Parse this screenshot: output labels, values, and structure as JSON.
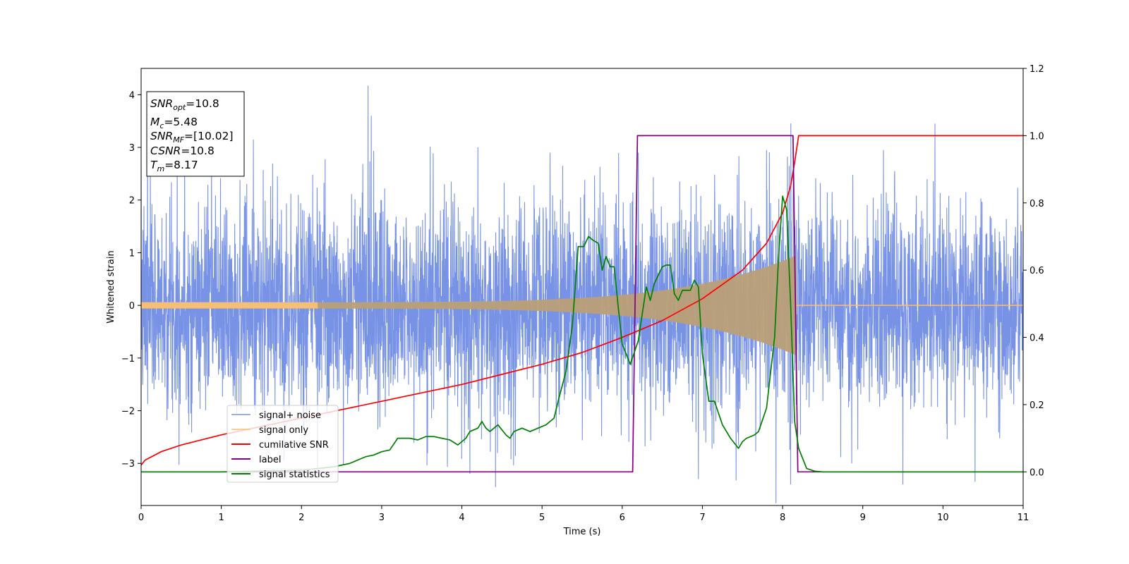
{
  "chart_data": {
    "type": "line",
    "title": "",
    "xlabel": "Time (s)",
    "ylabel": "Whitened strain",
    "xlim": [
      0,
      11
    ],
    "ylim": [
      -3.8,
      4.5
    ],
    "y2lim": [
      -0.1,
      1.2
    ],
    "xticks": [
      "0",
      "1",
      "2",
      "3",
      "4",
      "5",
      "6",
      "7",
      "8",
      "9",
      "10",
      "11"
    ],
    "yticks": [
      {
        "v": -3,
        "t": "−3"
      },
      {
        "v": -2,
        "t": "−2"
      },
      {
        "v": -1,
        "t": "−1"
      },
      {
        "v": 0,
        "t": "0"
      },
      {
        "v": 1,
        "t": "1"
      },
      {
        "v": 2,
        "t": "2"
      },
      {
        "v": 3,
        "t": "3"
      },
      {
        "v": 4,
        "t": "4"
      }
    ],
    "y2ticks": [
      {
        "v": 0.0,
        "t": "0.0"
      },
      {
        "v": 0.2,
        "t": "0.2"
      },
      {
        "v": 0.4,
        "t": "0.4"
      },
      {
        "v": 0.6,
        "t": "0.6"
      },
      {
        "v": 0.8,
        "t": "0.8"
      },
      {
        "v": 1.0,
        "t": "1.0"
      },
      {
        "v": 1.2,
        "t": "1.2"
      }
    ],
    "grid": false,
    "legend_position": "lower-left",
    "info_box": {
      "snr_opt": {
        "name": "SNR",
        "sub": "opt",
        "value": "=10.8"
      },
      "mc": {
        "name": "M",
        "sub": "c",
        "value": "=5.48"
      },
      "snr_mf": {
        "name": "SNR",
        "sub": "MF",
        "value": "=[10.02]"
      },
      "csnr": {
        "name": "CSNR",
        "value": "=10.8"
      },
      "tm": {
        "name": "T",
        "sub": "m",
        "value": "=8.17"
      }
    },
    "series": [
      {
        "name": "signal+ noise",
        "color": "#7893e6",
        "axis": "left",
        "kind": "noise",
        "sigma": 1.0,
        "noise_seed": 7,
        "peaks": [
          [
            2.83,
            4.17
          ],
          [
            0.08,
            3.7
          ],
          [
            0.45,
            3.05
          ],
          [
            1.4,
            3.15
          ],
          [
            2.87,
            3.6
          ],
          [
            4.2,
            3.0
          ],
          [
            5.1,
            2.9
          ],
          [
            6.2,
            2.9
          ],
          [
            7.8,
            2.95
          ],
          [
            9.9,
            3.45
          ],
          [
            4.42,
            -3.45
          ],
          [
            8.1,
            -3.4
          ],
          [
            9.5,
            -3.4
          ],
          [
            10.4,
            -3.35
          ],
          [
            11.0,
            -3.3
          ],
          [
            6.95,
            -3.3
          ],
          [
            2.2,
            -3.3
          ],
          [
            4.1,
            -3.2
          ]
        ]
      },
      {
        "name": "signal only",
        "color": "#f6be76",
        "axis": "left",
        "kind": "chirp",
        "amplitude_start": 0.06,
        "amplitude_end": 0.95,
        "chirp_end": 8.17
      },
      {
        "name": "cumilative SNR",
        "color": "#ff0000",
        "axis": "right",
        "x": [
          0,
          0.05,
          0.25,
          0.5,
          1.0,
          1.5,
          2.0,
          2.5,
          3.0,
          3.5,
          4.0,
          4.5,
          5.0,
          5.5,
          6.0,
          6.5,
          7.0,
          7.5,
          7.8,
          8.0,
          8.1,
          8.15,
          8.2,
          11
        ],
        "y": [
          0.02,
          0.035,
          0.06,
          0.08,
          0.11,
          0.135,
          0.16,
          0.185,
          0.21,
          0.235,
          0.26,
          0.29,
          0.32,
          0.355,
          0.4,
          0.45,
          0.515,
          0.6,
          0.68,
          0.77,
          0.85,
          0.92,
          1.0,
          1.0
        ]
      },
      {
        "name": "label",
        "color": "#800080",
        "axis": "right",
        "x": [
          0,
          6.13,
          6.19,
          8.13,
          8.19,
          11
        ],
        "y": [
          0,
          0,
          1,
          1,
          0,
          0
        ]
      },
      {
        "name": "signal statistics",
        "color": "#008000",
        "axis": "right",
        "x": [
          0,
          1.0,
          2.0,
          2.4,
          2.6,
          2.8,
          2.9,
          3.0,
          3.1,
          3.2,
          3.25,
          3.35,
          3.45,
          3.55,
          3.65,
          3.75,
          3.85,
          3.95,
          4.05,
          4.1,
          4.2,
          4.25,
          4.3,
          4.35,
          4.45,
          4.55,
          4.6,
          4.65,
          4.75,
          4.85,
          4.95,
          5.05,
          5.15,
          5.2,
          5.3,
          5.38,
          5.45,
          5.52,
          5.58,
          5.63,
          5.7,
          5.75,
          5.8,
          5.85,
          5.9,
          5.95,
          6.0,
          6.1,
          6.2,
          6.3,
          6.35,
          6.4,
          6.5,
          6.55,
          6.6,
          6.65,
          6.7,
          6.75,
          6.8,
          6.85,
          6.9,
          6.95,
          7.0,
          7.08,
          7.15,
          7.25,
          7.35,
          7.45,
          7.5,
          7.55,
          7.65,
          7.7,
          7.8,
          7.9,
          7.95,
          8.0,
          8.05,
          8.1,
          8.15,
          8.2,
          8.3,
          8.4,
          8.5,
          11
        ],
        "y": [
          0.0,
          0.0,
          0.005,
          0.015,
          0.025,
          0.045,
          0.05,
          0.06,
          0.065,
          0.1,
          0.1,
          0.1,
          0.095,
          0.105,
          0.105,
          0.1,
          0.095,
          0.08,
          0.1,
          0.12,
          0.13,
          0.15,
          0.13,
          0.12,
          0.14,
          0.11,
          0.1,
          0.12,
          0.13,
          0.12,
          0.13,
          0.14,
          0.16,
          0.21,
          0.3,
          0.44,
          0.67,
          0.67,
          0.7,
          0.69,
          0.68,
          0.6,
          0.64,
          0.61,
          0.61,
          0.49,
          0.38,
          0.32,
          0.39,
          0.55,
          0.51,
          0.56,
          0.61,
          0.615,
          0.615,
          0.53,
          0.51,
          0.54,
          0.54,
          0.54,
          0.57,
          0.55,
          0.35,
          0.21,
          0.21,
          0.14,
          0.1,
          0.07,
          0.09,
          0.1,
          0.11,
          0.12,
          0.19,
          0.4,
          0.64,
          0.82,
          0.78,
          0.5,
          0.15,
          0.07,
          0.01,
          0.002,
          0.0,
          0.0
        ]
      }
    ]
  }
}
